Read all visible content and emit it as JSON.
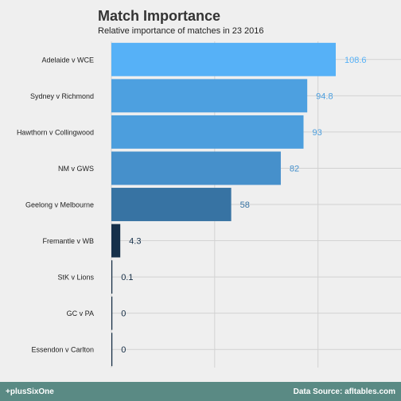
{
  "chart_data": {
    "type": "bar",
    "orientation": "horizontal",
    "title": "Match Importance",
    "subtitle": "Relative importance of matches in 23 2016",
    "categories": [
      "Adelaide v WCE",
      "Sydney v Richmond",
      "Hawthorn v Collingwood",
      "NM v GWS",
      "Geelong v Melbourne",
      "Fremantle v WB",
      "StK v Lions",
      "GC v PA",
      "Essendon v Carlton"
    ],
    "values": [
      108.6,
      94.8,
      93,
      82,
      58,
      4.3,
      0.1,
      0,
      0
    ],
    "value_labels": [
      "108.6",
      "94.8",
      "93",
      "82",
      "58",
      "4.3",
      "0.1",
      "0",
      "0"
    ],
    "xlim": [
      0,
      125
    ],
    "grid": true,
    "legend": "none",
    "color_scale": [
      "#132b43",
      "#56b1f7"
    ]
  },
  "footer": {
    "brand": "+plusSixOne",
    "source": "Data Source: afltables.com"
  },
  "colors": {
    "background": "#efefef",
    "footer": "#5a8a84",
    "gridline": "#d2d2d2"
  }
}
